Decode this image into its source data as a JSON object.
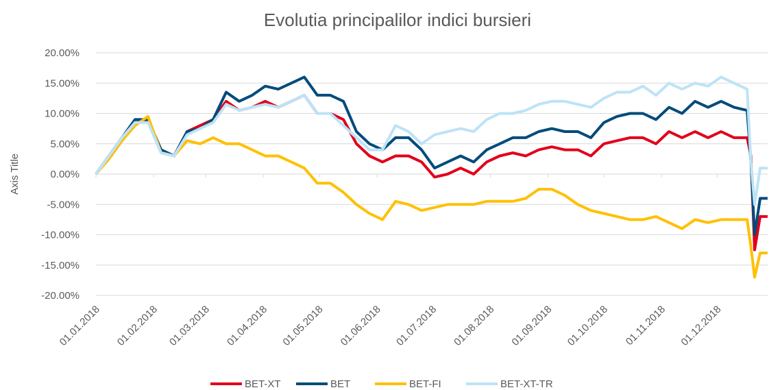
{
  "chart_data": {
    "type": "line",
    "title": "Evolutia principalilor indici bursieri",
    "y_label": "Axis Title",
    "x": [
      "01.01.2018",
      "08.01.2018",
      "15.01.2018",
      "22.01.2018",
      "29.01.2018",
      "05.02.2018",
      "12.02.2018",
      "19.02.2018",
      "26.02.2018",
      "05.03.2018",
      "12.03.2018",
      "19.03.2018",
      "26.03.2018",
      "02.04.2018",
      "09.04.2018",
      "16.04.2018",
      "23.04.2018",
      "30.04.2018",
      "07.05.2018",
      "14.05.2018",
      "21.05.2018",
      "28.05.2018",
      "04.06.2018",
      "11.06.2018",
      "18.06.2018",
      "25.06.2018",
      "02.07.2018",
      "09.07.2018",
      "16.07.2018",
      "23.07.2018",
      "30.07.2018",
      "06.08.2018",
      "13.08.2018",
      "20.08.2018",
      "27.08.2018",
      "03.09.2018",
      "10.09.2018",
      "17.09.2018",
      "24.09.2018",
      "01.10.2018",
      "08.10.2018",
      "15.10.2018",
      "22.10.2018",
      "29.10.2018",
      "05.11.2018",
      "12.11.2018",
      "19.11.2018",
      "26.11.2018",
      "03.12.2018",
      "10.12.2018",
      "17.12.2018",
      "19.12.2018",
      "21.12.2018",
      "24.12.2018",
      "28.12.2018"
    ],
    "series": [
      {
        "name": "BET-XT",
        "color": "#e2001a",
        "values": [
          0,
          3,
          6,
          8.5,
          9,
          4,
          3,
          7,
          8,
          9,
          12,
          10.5,
          11,
          12,
          11,
          12,
          13,
          10,
          10,
          9,
          5,
          3,
          2,
          3,
          3,
          2,
          -0.5,
          0,
          1,
          0,
          2,
          3,
          3.5,
          3,
          4,
          4.5,
          4,
          4,
          3,
          5,
          5.5,
          6,
          6,
          5,
          7,
          6,
          7,
          6,
          7,
          6,
          6,
          3,
          -12.5,
          -7,
          -7
        ]
      },
      {
        "name": "BET",
        "color": "#004b7a",
        "values": [
          0,
          3,
          6,
          9,
          9,
          4,
          3,
          7,
          7.5,
          9,
          13.5,
          12,
          13,
          14.5,
          14,
          15,
          16,
          13,
          13,
          12,
          7,
          5,
          4,
          6,
          6,
          4,
          1,
          2,
          3,
          2,
          4,
          5,
          6,
          6,
          7,
          7.5,
          7,
          7,
          6,
          8.5,
          9.5,
          10,
          10,
          9,
          11,
          10,
          12,
          11,
          12,
          11,
          10.5,
          2,
          -10,
          -4,
          -4
        ]
      },
      {
        "name": "BET-FI",
        "color": "#ffc000",
        "values": [
          0,
          2.5,
          5.5,
          8,
          9.5,
          3.5,
          3,
          5.5,
          5,
          6,
          5,
          5,
          4,
          3,
          3,
          2,
          1,
          -1.5,
          -1.5,
          -3,
          -5,
          -6.5,
          -7.5,
          -4.5,
          -5,
          -6,
          -5.5,
          -5,
          -5,
          -5,
          -4.5,
          -4.5,
          -4.5,
          -4,
          -2.5,
          -2.5,
          -3.5,
          -5,
          -6,
          -6.5,
          -7,
          -7.5,
          -7.5,
          -7,
          -8,
          -9,
          -7.5,
          -8,
          -7.5,
          -7.5,
          -7.5,
          -12,
          -17,
          -13,
          -13
        ]
      },
      {
        "name": "BET-XT-TR",
        "color": "#bde3f7",
        "values": [
          0,
          3,
          6,
          8.5,
          8.5,
          3.5,
          3,
          6.5,
          7.5,
          8.5,
          11.5,
          10.5,
          11,
          11.5,
          11,
          12,
          13,
          10,
          10,
          8,
          6,
          4,
          4,
          8,
          7,
          5,
          6.5,
          7,
          7.5,
          7,
          9,
          10,
          10,
          10.5,
          11.5,
          12,
          12,
          11.5,
          11,
          12.5,
          13.5,
          13.5,
          14.5,
          13,
          15,
          14,
          15,
          14.5,
          16,
          15,
          14,
          2,
          -5,
          1,
          1
        ]
      }
    ],
    "xlim": [
      "01.01.2018",
      "28.12.2018"
    ],
    "xticks": [
      "01.01.2018",
      "01.02.2018",
      "01.03.2018",
      "01.04.2018",
      "01.05.2018",
      "01.06.2018",
      "01.07.2018",
      "01.08.2018",
      "01.09.2018",
      "01.10.2018",
      "01.11.2018",
      "01.12.2018"
    ],
    "ylim": [
      -20,
      20
    ],
    "yticks": [
      {
        "value": -20,
        "label": "-20.00%"
      },
      {
        "value": -15,
        "label": "-15.00%"
      },
      {
        "value": -10,
        "label": "-10.00%"
      },
      {
        "value": -5,
        "label": "-5.00%"
      },
      {
        "value": 0,
        "label": "0.00%"
      },
      {
        "value": 5,
        "label": "5.00%"
      },
      {
        "value": 10,
        "label": "10.00%"
      },
      {
        "value": 15,
        "label": "15.00%"
      },
      {
        "value": 20,
        "label": "20.00%"
      }
    ],
    "grid": true,
    "legend": "bottom"
  }
}
